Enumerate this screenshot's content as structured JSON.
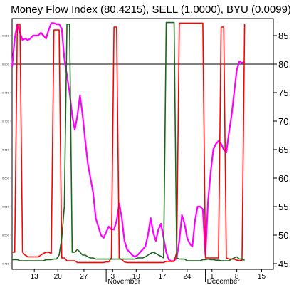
{
  "chart_data": {
    "type": "line",
    "title": "Money Flow Index (80.4215), SELL (1.0000), BYU (0.0099)",
    "ylim": [
      44,
      88
    ],
    "y_ticks": [
      45,
      50,
      55,
      60,
      65,
      70,
      75,
      80,
      85
    ],
    "x_tick_labels": [
      "13",
      "20",
      "27",
      "3",
      "10",
      "17",
      "24",
      "1",
      "8",
      "15"
    ],
    "month_labels": [
      "November",
      "December"
    ],
    "reference_line": 80,
    "grid": false,
    "x": [
      0,
      1,
      2,
      3,
      4,
      5,
      6,
      7,
      8,
      9,
      10,
      11,
      12,
      13,
      14,
      15,
      16,
      17,
      18,
      19,
      20,
      21,
      22,
      23,
      24,
      25,
      26,
      27,
      28,
      29,
      30,
      31,
      32,
      33,
      34,
      35,
      36,
      37,
      38,
      39,
      40,
      41,
      42,
      43,
      44,
      45,
      46,
      47,
      48,
      49,
      50,
      51,
      52,
      53,
      54,
      55,
      56,
      57,
      58,
      59,
      60,
      61,
      62,
      63,
      64,
      65,
      66,
      67,
      68,
      69,
      70,
      71,
      72,
      73,
      74,
      75,
      76,
      77,
      78,
      79,
      80,
      81,
      82,
      83,
      84,
      85,
      86,
      87,
      88,
      89
    ],
    "series": [
      {
        "color": "#ff00ff",
        "values": [
          79.5,
          84.5,
          87,
          85.5,
          84.2,
          84.5,
          84.2,
          84.5,
          85,
          85,
          85,
          85.5,
          85,
          84.5,
          86,
          87.2,
          87.2,
          87,
          87,
          86.2,
          81,
          78,
          75,
          71,
          68.5,
          71,
          74.5,
          71,
          66.5,
          62.5,
          60,
          57.5,
          53,
          51.5,
          50,
          49.5,
          50.5,
          51.5,
          51,
          51,
          52.5,
          55.5,
          53,
          49,
          47.5,
          47,
          46.5,
          46.2,
          46.5,
          47,
          47.5,
          48,
          50,
          53,
          50.5,
          49,
          51,
          52,
          49.5,
          47,
          45.7,
          45.4,
          45.5,
          46,
          49,
          53.5,
          52,
          49.5,
          48.5,
          48,
          52.5,
          55,
          55,
          54.5,
          46.5,
          56,
          61,
          65,
          66,
          66.5,
          66,
          65,
          64.5,
          68,
          71,
          75,
          79,
          80.5,
          80.2,
          80.4
        ]
      },
      {
        "color": "#ff0000",
        "values": [
          47,
          47,
          87,
          87,
          47,
          46.5,
          46.2,
          46.2,
          46.2,
          46.2,
          46.2,
          46.5,
          46.8,
          47,
          47,
          46.8,
          86,
          86,
          86,
          46,
          46,
          45.5,
          45.5,
          45.5,
          45.5,
          45.2,
          45.2,
          45.2,
          45.2,
          45.2,
          45.2,
          45.2,
          45.2,
          45.2,
          45.2,
          45.2,
          45.3,
          45.3,
          46,
          86.5,
          86.5,
          46,
          45.7,
          45.3,
          45.2,
          45.2,
          45.2,
          45.2,
          45.2,
          45.2,
          45.2,
          45.2,
          45.2,
          45.2,
          45.2,
          45.2,
          45.2,
          45.2,
          45.2,
          45.4,
          45.4,
          45.4,
          45.4,
          47,
          87.2,
          87.2,
          87.2,
          87.2,
          87.2,
          87.2,
          87.2,
          87.2,
          87.2,
          87.2,
          46,
          46,
          46,
          46,
          46,
          46,
          86.5,
          86.5,
          46,
          45.8,
          45.8,
          45.8,
          45.6,
          45.5,
          45.6,
          87
        ]
      },
      {
        "color": "#1a661a",
        "values": [
          45.7,
          45.7,
          45.7,
          45.5,
          45.5,
          45.5,
          45.5,
          45.5,
          45.5,
          45.5,
          45.5,
          45.5,
          45.5,
          45.7,
          45.7,
          45.7,
          45.8,
          45.8,
          46.5,
          49.5,
          55,
          87,
          87,
          47,
          47,
          47.5,
          47,
          46.5,
          46.5,
          46.2,
          46,
          46,
          45.8,
          45.8,
          45.8,
          45.8,
          45.8,
          45.8,
          45.8,
          45.8,
          45.8,
          45.8,
          45.8,
          45.8,
          45.8,
          45.8,
          45.8,
          45.8,
          46,
          46,
          46,
          46.2,
          46.5,
          46.8,
          47,
          46.8,
          46.5,
          46.3,
          46,
          87.3,
          87.3,
          87.3,
          87.3,
          46,
          45.8,
          45.8,
          45.8,
          45.5,
          45.5,
          45.5,
          45.5,
          45.5,
          45.5,
          45.7,
          45.7,
          45.8,
          45.7,
          45.7,
          45.6,
          45.6,
          45.5,
          45.5,
          45.5,
          45.5,
          45.8,
          46,
          46.2,
          45.8,
          45.8,
          45.6
        ]
      }
    ]
  }
}
